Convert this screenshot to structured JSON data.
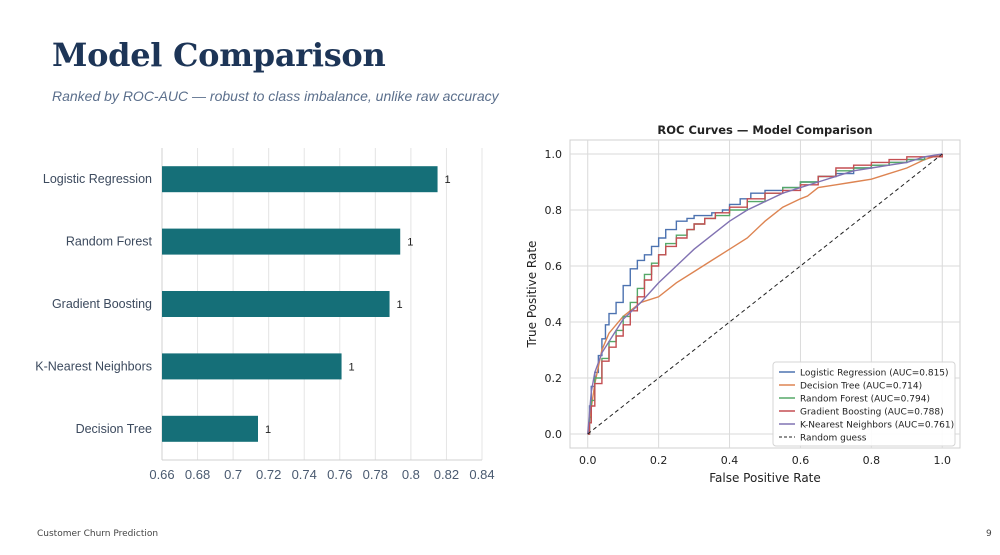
{
  "slide": {
    "title": "Model Comparison",
    "subtitle": "Ranked by ROC-AUC — robust to class imbalance, unlike raw accuracy",
    "footer": "Customer Churn Prediction",
    "page_number": "9"
  },
  "chart_data": [
    {
      "type": "bar",
      "orientation": "horizontal",
      "categories": [
        "Logistic Regression",
        "Random Forest",
        "Gradient Boosting",
        "K-Nearest Neighbors",
        "Decision Tree"
      ],
      "values": [
        0.815,
        0.794,
        0.788,
        0.761,
        0.714
      ],
      "data_labels": [
        "1",
        "1",
        "1",
        "1",
        "1"
      ],
      "xlim": [
        0.66,
        0.84
      ],
      "x_ticks": [
        "0.66",
        "0.68",
        "0.7",
        "0.72",
        "0.74",
        "0.76",
        "0.78",
        "0.8",
        "0.82",
        "0.84"
      ],
      "bar_color": "#156f78",
      "grid": true
    },
    {
      "type": "line",
      "title": "ROC Curves — Model Comparison",
      "xlabel": "False Positive Rate",
      "ylabel": "True Positive Rate",
      "xlim": [
        -0.05,
        1.05
      ],
      "ylim": [
        -0.05,
        1.05
      ],
      "x_ticks": [
        "0.0",
        "0.2",
        "0.4",
        "0.6",
        "0.8",
        "1.0"
      ],
      "y_ticks": [
        "0.0",
        "0.2",
        "0.4",
        "0.6",
        "0.8",
        "1.0"
      ],
      "grid": true,
      "legend_position": "bottom-right",
      "series": [
        {
          "name": "Logistic Regression (AUC=0.815)",
          "color": "#4c72b0",
          "style": "step",
          "x": [
            0,
            0.005,
            0.01,
            0.02,
            0.03,
            0.04,
            0.05,
            0.06,
            0.08,
            0.1,
            0.12,
            0.14,
            0.16,
            0.18,
            0.2,
            0.22,
            0.25,
            0.28,
            0.3,
            0.32,
            0.35,
            0.38,
            0.4,
            0.43,
            0.46,
            0.5,
            0.55,
            0.6,
            0.65,
            0.7,
            0.75,
            0.8,
            0.85,
            0.9,
            0.95,
            1.0
          ],
          "y": [
            0,
            0.1,
            0.17,
            0.22,
            0.28,
            0.34,
            0.39,
            0.43,
            0.47,
            0.53,
            0.59,
            0.62,
            0.64,
            0.67,
            0.7,
            0.73,
            0.76,
            0.77,
            0.78,
            0.78,
            0.79,
            0.8,
            0.82,
            0.84,
            0.86,
            0.87,
            0.88,
            0.9,
            0.92,
            0.93,
            0.95,
            0.96,
            0.97,
            0.98,
            0.99,
            1.0
          ]
        },
        {
          "name": "Decision Tree (AUC=0.714)",
          "color": "#dd8452",
          "style": "line",
          "x": [
            0,
            0.005,
            0.02,
            0.04,
            0.06,
            0.1,
            0.15,
            0.2,
            0.25,
            0.3,
            0.35,
            0.4,
            0.45,
            0.5,
            0.55,
            0.6,
            0.62,
            0.65,
            0.7,
            0.75,
            0.8,
            0.85,
            0.9,
            0.95,
            1.0
          ],
          "y": [
            0,
            0.05,
            0.18,
            0.3,
            0.36,
            0.42,
            0.47,
            0.49,
            0.54,
            0.58,
            0.62,
            0.66,
            0.7,
            0.76,
            0.81,
            0.84,
            0.85,
            0.88,
            0.89,
            0.9,
            0.91,
            0.93,
            0.95,
            0.98,
            1.0
          ]
        },
        {
          "name": "Random Forest (AUC=0.794)",
          "color": "#55a868",
          "style": "step",
          "x": [
            0,
            0.005,
            0.01,
            0.02,
            0.04,
            0.06,
            0.08,
            0.1,
            0.12,
            0.14,
            0.16,
            0.18,
            0.2,
            0.22,
            0.25,
            0.28,
            0.3,
            0.33,
            0.36,
            0.4,
            0.45,
            0.5,
            0.55,
            0.6,
            0.65,
            0.7,
            0.75,
            0.8,
            0.85,
            0.9,
            0.95,
            1.0
          ],
          "y": [
            0,
            0.06,
            0.12,
            0.2,
            0.27,
            0.33,
            0.37,
            0.42,
            0.47,
            0.52,
            0.57,
            0.61,
            0.64,
            0.68,
            0.71,
            0.73,
            0.75,
            0.77,
            0.78,
            0.8,
            0.83,
            0.86,
            0.88,
            0.9,
            0.92,
            0.94,
            0.95,
            0.96,
            0.97,
            0.98,
            0.99,
            1.0
          ]
        },
        {
          "name": "Gradient Boosting (AUC=0.788)",
          "color": "#c44e52",
          "style": "step",
          "x": [
            0,
            0.005,
            0.01,
            0.02,
            0.04,
            0.06,
            0.08,
            0.1,
            0.12,
            0.14,
            0.16,
            0.18,
            0.2,
            0.22,
            0.25,
            0.28,
            0.3,
            0.33,
            0.36,
            0.4,
            0.45,
            0.5,
            0.55,
            0.6,
            0.65,
            0.7,
            0.75,
            0.8,
            0.85,
            0.9,
            0.95,
            1.0
          ],
          "y": [
            0,
            0.04,
            0.1,
            0.18,
            0.26,
            0.31,
            0.35,
            0.39,
            0.44,
            0.49,
            0.55,
            0.6,
            0.64,
            0.67,
            0.7,
            0.73,
            0.75,
            0.77,
            0.79,
            0.81,
            0.84,
            0.86,
            0.87,
            0.89,
            0.92,
            0.95,
            0.96,
            0.97,
            0.98,
            0.99,
            0.99,
            1.0
          ]
        },
        {
          "name": "K-Nearest Neighbors (AUC=0.761)",
          "color": "#8172b2",
          "style": "line",
          "x": [
            0,
            0.01,
            0.02,
            0.04,
            0.06,
            0.08,
            0.1,
            0.15,
            0.2,
            0.25,
            0.3,
            0.35,
            0.4,
            0.45,
            0.5,
            0.55,
            0.6,
            0.65,
            0.7,
            0.75,
            0.8,
            0.85,
            0.9,
            0.95,
            1.0
          ],
          "y": [
            0,
            0.15,
            0.22,
            0.29,
            0.33,
            0.37,
            0.41,
            0.47,
            0.54,
            0.6,
            0.66,
            0.71,
            0.76,
            0.8,
            0.83,
            0.86,
            0.88,
            0.9,
            0.92,
            0.94,
            0.95,
            0.96,
            0.97,
            0.99,
            1.0
          ]
        },
        {
          "name": "Random guess",
          "color": "#222222",
          "style": "dashed",
          "x": [
            0,
            1
          ],
          "y": [
            0,
            1
          ]
        }
      ]
    }
  ]
}
